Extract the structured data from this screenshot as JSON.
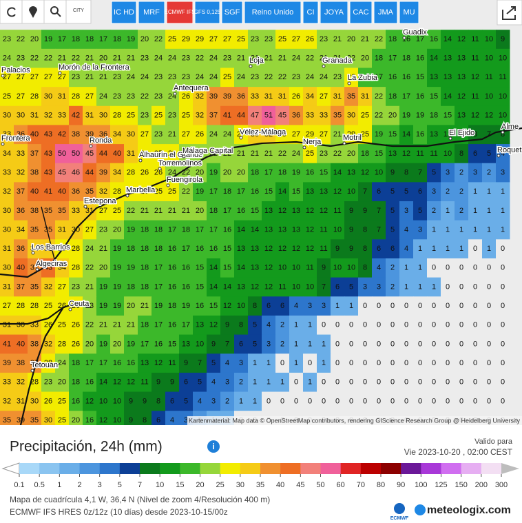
{
  "toolbar": {
    "city": "CITY",
    "models": [
      "IC HD",
      "MRF",
      "ECMWF IFS",
      "GFS 0,125",
      "SGF",
      "Reino Unido",
      "CI",
      "JOYA",
      "CAC",
      "JMA",
      "MU"
    ]
  },
  "places": [
    "Guadix",
    "Granada",
    "Loja",
    "La Zubia",
    "Morón de la Frontera",
    "Palacios",
    "Antequera",
    "Ronda",
    "Vélez-Málaga",
    "Nerja",
    "Motril",
    "El Ejido",
    "Alme",
    "Roquetas de Ma",
    "Alhaurín el Grande",
    "Málaga Capital",
    "Torremolinos",
    "Fuengirola",
    "Marbella",
    "Estepona",
    "Los Barrios",
    "Algeciras",
    "Ceuta",
    "Tetouan",
    "Frontera"
  ],
  "attribution": "Kartenmaterial: Map data © OpenStreetMap contributors, rendering GIScience Research Group @ Heidelberg University",
  "grid": {
    "rows": [
      [
        23,
        22,
        20,
        19,
        17,
        18,
        18,
        17,
        18,
        19,
        20,
        22,
        25,
        29,
        29,
        27,
        27,
        25,
        23,
        23,
        25,
        27,
        26,
        23,
        21,
        20,
        21,
        22,
        18,
        16,
        17,
        16,
        14,
        12,
        11,
        10,
        9
      ],
      [
        24,
        23,
        22,
        22,
        21,
        22,
        21,
        20,
        21,
        21,
        23,
        24,
        24,
        23,
        22,
        24,
        23,
        21,
        21,
        21,
        21,
        24,
        22,
        21,
        21,
        22,
        20,
        18,
        17,
        18,
        16,
        14,
        13,
        13,
        11,
        10,
        10
      ],
      [
        27,
        27,
        27,
        27,
        27,
        23,
        21,
        21,
        23,
        24,
        24,
        23,
        23,
        23,
        24,
        24,
        25,
        24,
        23,
        22,
        22,
        23,
        24,
        24,
        23,
        26,
        18,
        17,
        16,
        16,
        15,
        13,
        13,
        13,
        12,
        11,
        11
      ],
      [
        25,
        27,
        28,
        30,
        31,
        28,
        27,
        24,
        23,
        23,
        22,
        23,
        24,
        26,
        32,
        39,
        39,
        36,
        33,
        31,
        31,
        26,
        34,
        27,
        31,
        35,
        31,
        22,
        18,
        17,
        16,
        15,
        14,
        12,
        11,
        10,
        10
      ],
      [
        30,
        30,
        31,
        32,
        33,
        42,
        31,
        30,
        28,
        25,
        23,
        25,
        23,
        25,
        32,
        37,
        41,
        44,
        47,
        51,
        45,
        36,
        33,
        33,
        35,
        30,
        25,
        22,
        20,
        19,
        19,
        18,
        15,
        13,
        12,
        12,
        10
      ],
      [
        33,
        36,
        40,
        43,
        42,
        38,
        39,
        36,
        34,
        30,
        27,
        23,
        21,
        27,
        26,
        24,
        24,
        27,
        30,
        32,
        29,
        27,
        29,
        27,
        21,
        29,
        25,
        19,
        15,
        14,
        16,
        13,
        12,
        10,
        8,
        7,
        8
      ],
      [
        34,
        33,
        37,
        43,
        50,
        50,
        45,
        44,
        40,
        31,
        26,
        25,
        25,
        23,
        22,
        22,
        22,
        21,
        21,
        21,
        22,
        24,
        25,
        23,
        22,
        20,
        18,
        15,
        13,
        12,
        11,
        11,
        10,
        8,
        6,
        5,
        4
      ],
      [
        33,
        32,
        38,
        43,
        45,
        46,
        44,
        39,
        34,
        28,
        26,
        26,
        24,
        22,
        20,
        19,
        20,
        20,
        18,
        17,
        18,
        19,
        16,
        15,
        14,
        13,
        12,
        10,
        9,
        8,
        7,
        5,
        3,
        2,
        3,
        2,
        3
      ],
      [
        32,
        37,
        40,
        41,
        40,
        36,
        35,
        32,
        28,
        25,
        25,
        25,
        25,
        22,
        19,
        17,
        18,
        17,
        16,
        15,
        14,
        15,
        13,
        13,
        12,
        10,
        7,
        6,
        5,
        5,
        6,
        3,
        2,
        2,
        1,
        1,
        1
      ],
      [
        30,
        36,
        38,
        35,
        35,
        33,
        31,
        27,
        25,
        22,
        21,
        21,
        21,
        21,
        20,
        18,
        17,
        16,
        15,
        13,
        12,
        13,
        12,
        12,
        11,
        9,
        9,
        7,
        5,
        3,
        5,
        2,
        1,
        2,
        1,
        1,
        1
      ],
      [
        30,
        34,
        35,
        35,
        31,
        30,
        27,
        23,
        20,
        19,
        18,
        18,
        17,
        18,
        17,
        17,
        16,
        14,
        14,
        13,
        13,
        13,
        12,
        11,
        10,
        9,
        8,
        7,
        5,
        4,
        3,
        1,
        1,
        1,
        1,
        1,
        1
      ],
      [
        31,
        36,
        34,
        32,
        29,
        28,
        24,
        21,
        19,
        18,
        18,
        18,
        16,
        17,
        16,
        16,
        15,
        13,
        13,
        12,
        12,
        12,
        12,
        11,
        9,
        9,
        8,
        6,
        6,
        4,
        1,
        1,
        1,
        1,
        0,
        1,
        0
      ],
      [
        30,
        40,
        37,
        43,
        34,
        28,
        22,
        20,
        19,
        19,
        18,
        17,
        16,
        16,
        15,
        14,
        15,
        14,
        13,
        12,
        10,
        10,
        11,
        9,
        10,
        10,
        8,
        4,
        2,
        1,
        1,
        0,
        0,
        0,
        0,
        0,
        0
      ],
      [
        31,
        37,
        35,
        32,
        27,
        23,
        21,
        19,
        19,
        18,
        18,
        17,
        16,
        16,
        15,
        14,
        14,
        13,
        12,
        12,
        11,
        10,
        10,
        7,
        6,
        5,
        3,
        3,
        2,
        1,
        1,
        1,
        0,
        0,
        0,
        0,
        0
      ],
      [
        27,
        28,
        28,
        25,
        26,
        26,
        23,
        19,
        19,
        20,
        21,
        19,
        18,
        19,
        16,
        15,
        12,
        10,
        8,
        6,
        6,
        4,
        3,
        3,
        1,
        1,
        0,
        0,
        0,
        0,
        0,
        0,
        0,
        0,
        0,
        0,
        0
      ],
      [
        31,
        30,
        33,
        26,
        25,
        26,
        22,
        21,
        21,
        21,
        18,
        17,
        16,
        17,
        13,
        12,
        9,
        8,
        5,
        4,
        2,
        1,
        1,
        0,
        0,
        0,
        0,
        0,
        0,
        0,
        0,
        0,
        0,
        0,
        0,
        0,
        0
      ],
      [
        41,
        40,
        38,
        32,
        28,
        26,
        20,
        19,
        20,
        19,
        17,
        16,
        15,
        13,
        10,
        9,
        7,
        6,
        5,
        3,
        2,
        1,
        1,
        1,
        0,
        0,
        0,
        0,
        0,
        0,
        0,
        0,
        0,
        0,
        0,
        0,
        0
      ],
      [
        39,
        38,
        37,
        28,
        24,
        18,
        17,
        17,
        16,
        16,
        13,
        12,
        11,
        9,
        7,
        5,
        4,
        3,
        1,
        1,
        0,
        1,
        0,
        1,
        0,
        0,
        0,
        0,
        0,
        0,
        0,
        0,
        0,
        0,
        0,
        0,
        0
      ],
      [
        33,
        32,
        28,
        23,
        20,
        18,
        16,
        14,
        12,
        12,
        11,
        9,
        9,
        6,
        5,
        4,
        3,
        2,
        1,
        1,
        1,
        0,
        1,
        0,
        0,
        0,
        0,
        0,
        0,
        0,
        0,
        0,
        0,
        0,
        0,
        0,
        0
      ],
      [
        32,
        31,
        30,
        26,
        25,
        16,
        12,
        10,
        10,
        9,
        9,
        8,
        6,
        5,
        4,
        3,
        2,
        1,
        1,
        0,
        0,
        0,
        0,
        0,
        0,
        0,
        0,
        0,
        0,
        0,
        0,
        0,
        0,
        0,
        0,
        0,
        0
      ],
      [
        35,
        39,
        35,
        30,
        25,
        20,
        16,
        12,
        10,
        9,
        8,
        6,
        4,
        3,
        2,
        1,
        1,
        0,
        0,
        0,
        0,
        0,
        0,
        0,
        0,
        0,
        0,
        0,
        0,
        0,
        0,
        0,
        0,
        0,
        0,
        0,
        0
      ]
    ]
  },
  "panel": {
    "title": "Precipitación, 24h (mm)",
    "valid_label": "Valido para",
    "valid_time": "Vie 2023-10-20 , 02:00 CEST",
    "info1": "Mapa de cuadrícula 4,1 W, 36,4 N (Nivel de zoom 4/Resolución 400 m)",
    "info2": "ECMWF IFS HRES 0z/12z (10 días) desde 2023-10-15/00z",
    "ecmwf": "ECMWF",
    "brand": "meteologix.com"
  },
  "legend": {
    "values": [
      0.1,
      0.5,
      1,
      2,
      3,
      5,
      7,
      10,
      15,
      20,
      25,
      30,
      35,
      40,
      45,
      50,
      60,
      70,
      80,
      90,
      100,
      125,
      150,
      200,
      300
    ],
    "colors": [
      "#a8d8f8",
      "#8ac4f0",
      "#6aaee8",
      "#4c95de",
      "#2d76cc",
      "#0c3f96",
      "#0b7a1c",
      "#139a1c",
      "#3cb82a",
      "#96d63a",
      "#f2ec00",
      "#f5cb16",
      "#f09030",
      "#ee6e24",
      "#f2807a",
      "#f0609a",
      "#e02424",
      "#bb0000",
      "#8c0000",
      "#6b1898",
      "#a838d8",
      "#d06ef0",
      "#e6aef2",
      "#f3dff3",
      "#bdbdbd"
    ]
  }
}
